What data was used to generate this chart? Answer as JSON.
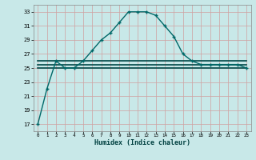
{
  "xlabel": "Humidex (Indice chaleur)",
  "x_values": [
    0,
    1,
    2,
    3,
    4,
    5,
    6,
    7,
    8,
    9,
    10,
    11,
    12,
    13,
    14,
    15,
    16,
    17,
    18,
    19,
    20,
    21,
    22,
    23
  ],
  "humidex_curve": [
    17,
    22,
    26,
    25,
    25,
    26,
    27.5,
    29,
    30,
    31.5,
    33,
    33,
    33,
    32.5,
    31,
    29.5,
    27,
    26,
    25.5,
    25.5,
    25.5,
    25.5,
    25.5,
    25
  ],
  "flat_line1": [
    26,
    26,
    26,
    26,
    26,
    26,
    26,
    26,
    26,
    26,
    26,
    26,
    26,
    26,
    26,
    26,
    26,
    26,
    26,
    26,
    26,
    26,
    26,
    26
  ],
  "flat_line2": [
    25.5,
    25.5,
    25.5,
    25.5,
    25.5,
    25.5,
    25.5,
    25.5,
    25.5,
    25.5,
    25.5,
    25.5,
    25.5,
    25.5,
    25.5,
    25.5,
    25.5,
    25.5,
    25.5,
    25.5,
    25.5,
    25.5,
    25.5,
    25.5
  ],
  "flat_line3": [
    25,
    25,
    25,
    25,
    25,
    25,
    25,
    25,
    25,
    25,
    25,
    25,
    25,
    25,
    25,
    25,
    25,
    25,
    25,
    25,
    25,
    25,
    25,
    25
  ],
  "line_color": "#006868",
  "flat_color": "#004848",
  "bg_color": "#c8e8e8",
  "grid_color": "#b8d8d0",
  "ylim": [
    16,
    34
  ],
  "yticks": [
    17,
    19,
    21,
    23,
    25,
    27,
    29,
    31,
    33
  ],
  "xlim": [
    -0.5,
    23.5
  ],
  "marker": "+",
  "markersize": 3.5,
  "linewidth": 1.0
}
